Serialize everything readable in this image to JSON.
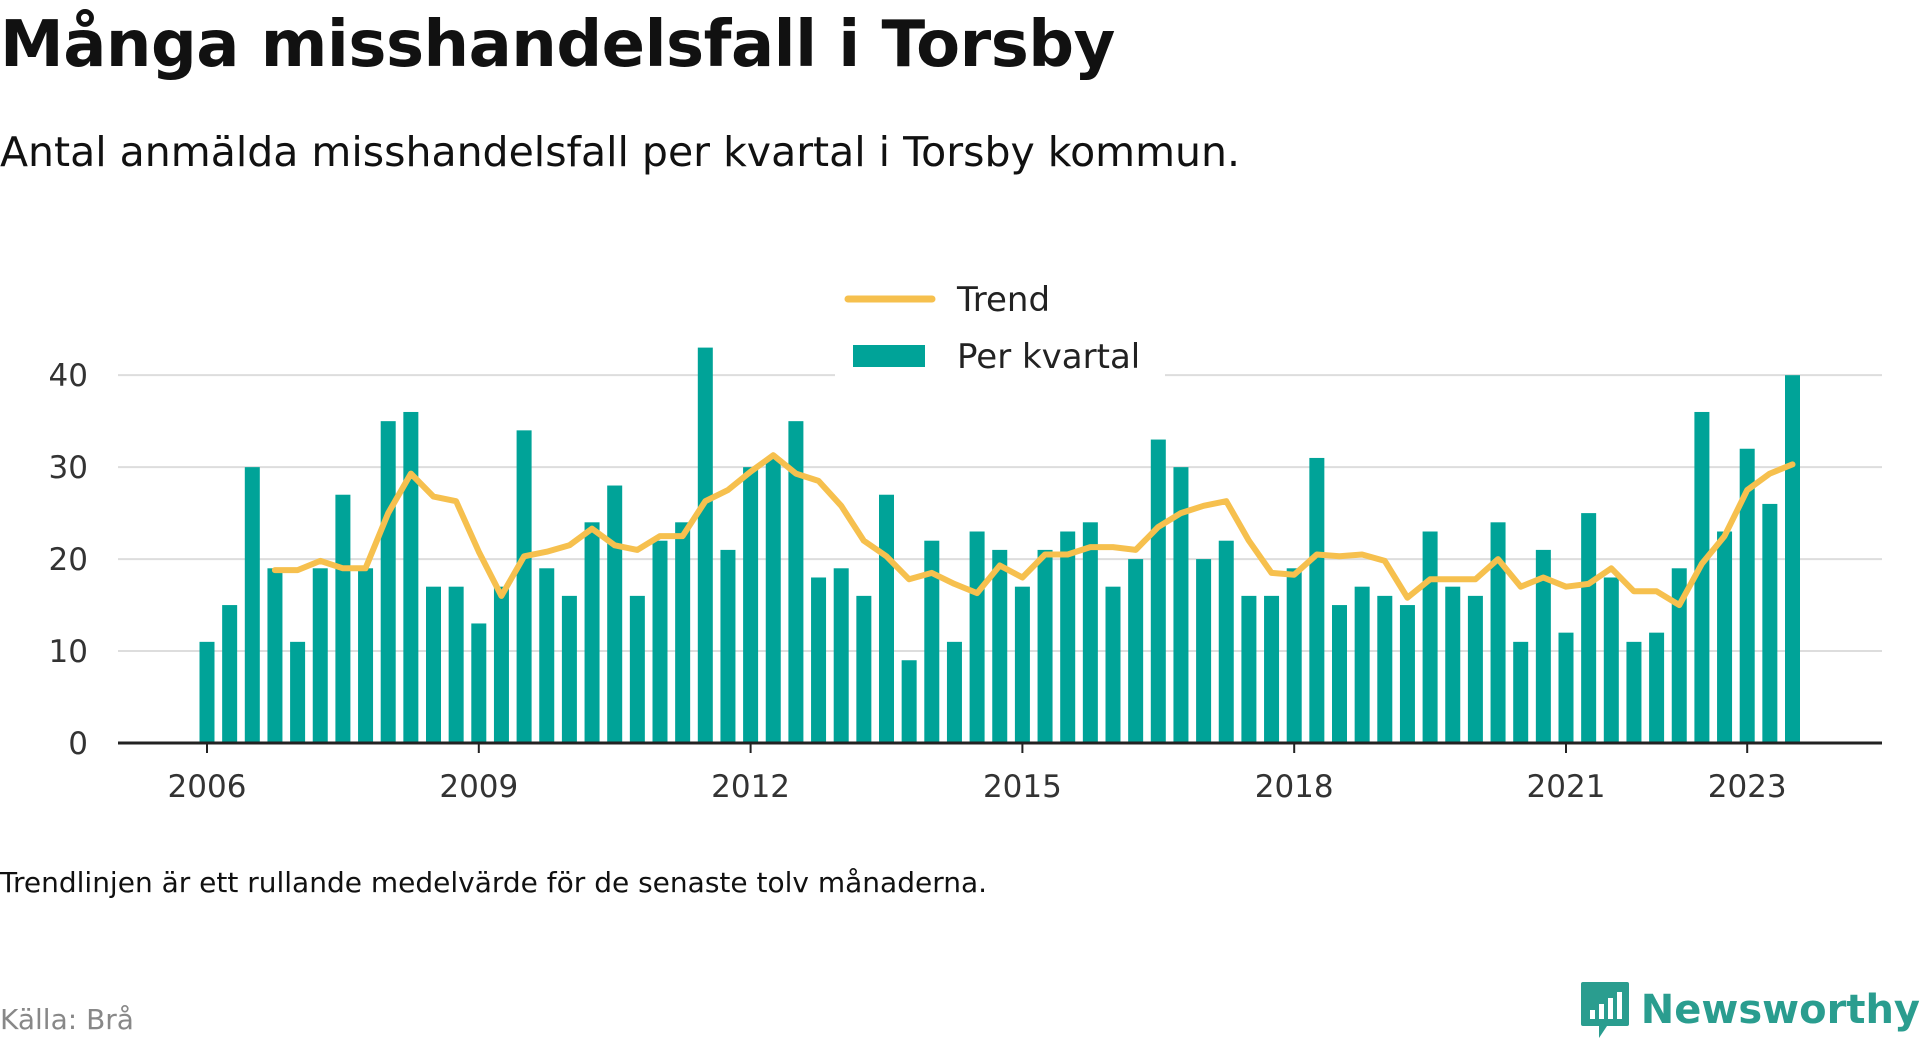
{
  "header": {
    "title": "Många misshandelsfall i Torsby",
    "subtitle": "Antal anmälda misshandelsfall per kvartal i Torsby kommun."
  },
  "footer": {
    "note": "Trendlinjen är ett rullande medelvärde för de senaste tolv månaderna.",
    "source": "Källa: Brå",
    "brand": "Newsworthy"
  },
  "colors": {
    "bar": "#00a398",
    "trend": "#f6c04e",
    "grid": "#dddddd",
    "axis": "#222222"
  },
  "chart_data": {
    "type": "bar",
    "start_quarter": "2006 Q1",
    "ylim": [
      0,
      44
    ],
    "yticks": [
      0,
      10,
      20,
      30,
      40
    ],
    "xticks": [
      "2006",
      "2009",
      "2012",
      "2015",
      "2018",
      "2021",
      "2023"
    ],
    "legend": {
      "placement": "top-center"
    },
    "series": [
      {
        "name": "Per kvartal",
        "kind": "bar",
        "values": [
          11,
          15,
          30,
          19,
          11,
          19,
          27,
          19,
          35,
          36,
          17,
          17,
          13,
          17,
          34,
          19,
          16,
          24,
          28,
          16,
          22,
          24,
          43,
          21,
          30,
          31,
          35,
          18,
          19,
          16,
          27,
          9,
          22,
          11,
          23,
          21,
          17,
          21,
          23,
          24,
          17,
          20,
          33,
          30,
          20,
          22,
          16,
          16,
          19,
          31,
          15,
          17,
          16,
          15,
          23,
          17,
          16,
          24,
          11,
          21,
          12,
          25,
          18,
          11,
          12,
          19,
          36,
          23,
          32,
          26,
          40
        ]
      },
      {
        "name": "Trend",
        "kind": "line",
        "values": [
          null,
          null,
          null,
          18.8,
          18.8,
          19.8,
          19.0,
          19.0,
          25.0,
          29.3,
          26.8,
          26.3,
          20.8,
          16.0,
          20.3,
          20.8,
          21.5,
          23.3,
          21.5,
          21.0,
          22.5,
          22.5,
          26.3,
          27.5,
          29.5,
          31.3,
          29.3,
          28.5,
          25.8,
          22.0,
          20.3,
          17.8,
          18.5,
          17.3,
          16.3,
          19.3,
          18.0,
          20.5,
          20.5,
          21.3,
          21.3,
          21.0,
          23.5,
          25.0,
          25.8,
          26.3,
          22.0,
          18.5,
          18.3,
          20.5,
          20.3,
          20.5,
          19.8,
          15.8,
          17.8,
          17.8,
          17.8,
          20.0,
          17.0,
          18.0,
          17.0,
          17.3,
          19.0,
          16.5,
          16.5,
          15.0,
          19.5,
          22.5,
          27.5,
          29.3,
          30.3
        ]
      }
    ]
  }
}
